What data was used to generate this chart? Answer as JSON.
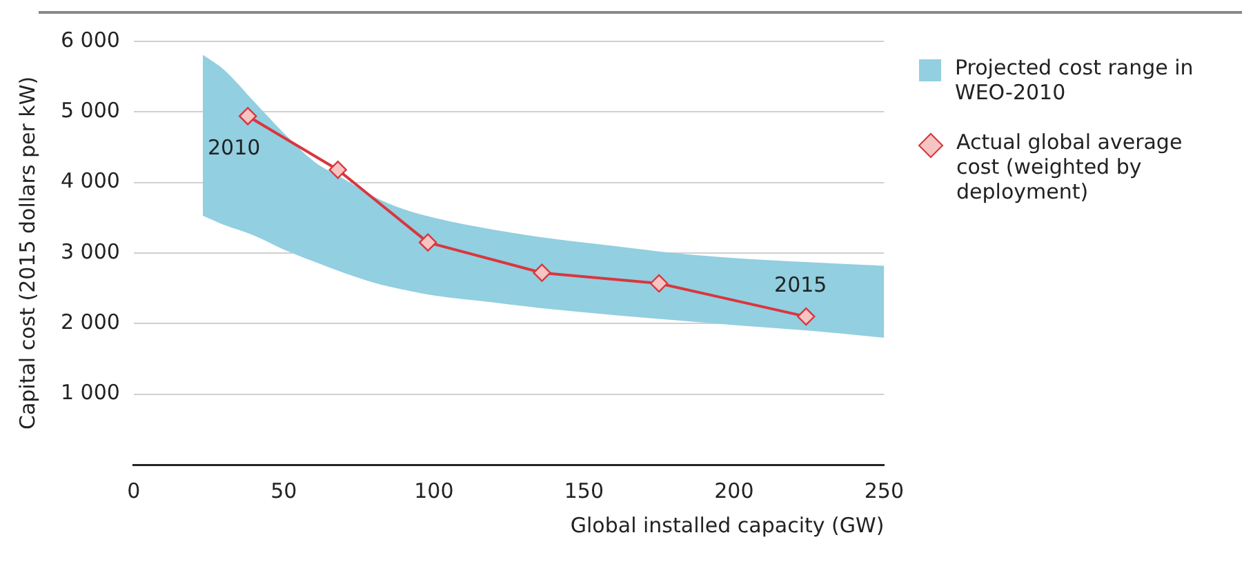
{
  "chart_data": {
    "type": "line",
    "xlabel": "Global installed capacity (GW)",
    "ylabel": "Capital cost (2015 dollars per kW)",
    "xlim": [
      0,
      250
    ],
    "xticks": [
      0,
      50,
      100,
      150,
      200,
      250
    ],
    "ylim": [
      0,
      6000
    ],
    "yticks": [
      {
        "value": 1000,
        "label": "1 000"
      },
      {
        "value": 2000,
        "label": "2 000"
      },
      {
        "value": 3000,
        "label": "3 000"
      },
      {
        "value": 4000,
        "label": "4 000"
      },
      {
        "value": 5000,
        "label": "5 000"
      },
      {
        "value": 6000,
        "label": "6 000"
      }
    ],
    "grid": "y",
    "legend": "right",
    "marker": "diamond",
    "line_style": "solid",
    "series": [
      {
        "type": "area",
        "name": "Projected cost range in WEO-2010",
        "color": "#92cfe0",
        "x": [
          23,
          30,
          40,
          50,
          60,
          70,
          80,
          90,
          100,
          120,
          140,
          160,
          180,
          200,
          225,
          250
        ],
        "values": [
          null,
          null,
          null,
          null,
          null,
          null,
          null,
          null,
          null,
          null,
          null,
          null,
          null,
          null,
          null,
          null
        ],
        "lower": [
          3530,
          3400,
          3250,
          3050,
          2880,
          2720,
          2580,
          2480,
          2400,
          2300,
          2200,
          2120,
          2050,
          1980,
          1900,
          1800
        ],
        "upper": [
          5810,
          5600,
          5150,
          4700,
          4300,
          4050,
          3800,
          3620,
          3500,
          3330,
          3200,
          3100,
          3000,
          2930,
          2870,
          2820
        ]
      },
      {
        "type": "line",
        "name": "Actual global average cost (weighted by deployment)",
        "color": "#d9363e",
        "x": [
          38,
          68,
          98,
          136,
          175,
          224
        ],
        "values": [
          4940,
          4180,
          3150,
          2720,
          2570,
          2100
        ]
      }
    ],
    "annotations": [
      {
        "text": "2010",
        "x": 38,
        "y": 4940
      },
      {
        "text": "2015",
        "x": 224,
        "y": 2100
      }
    ]
  }
}
